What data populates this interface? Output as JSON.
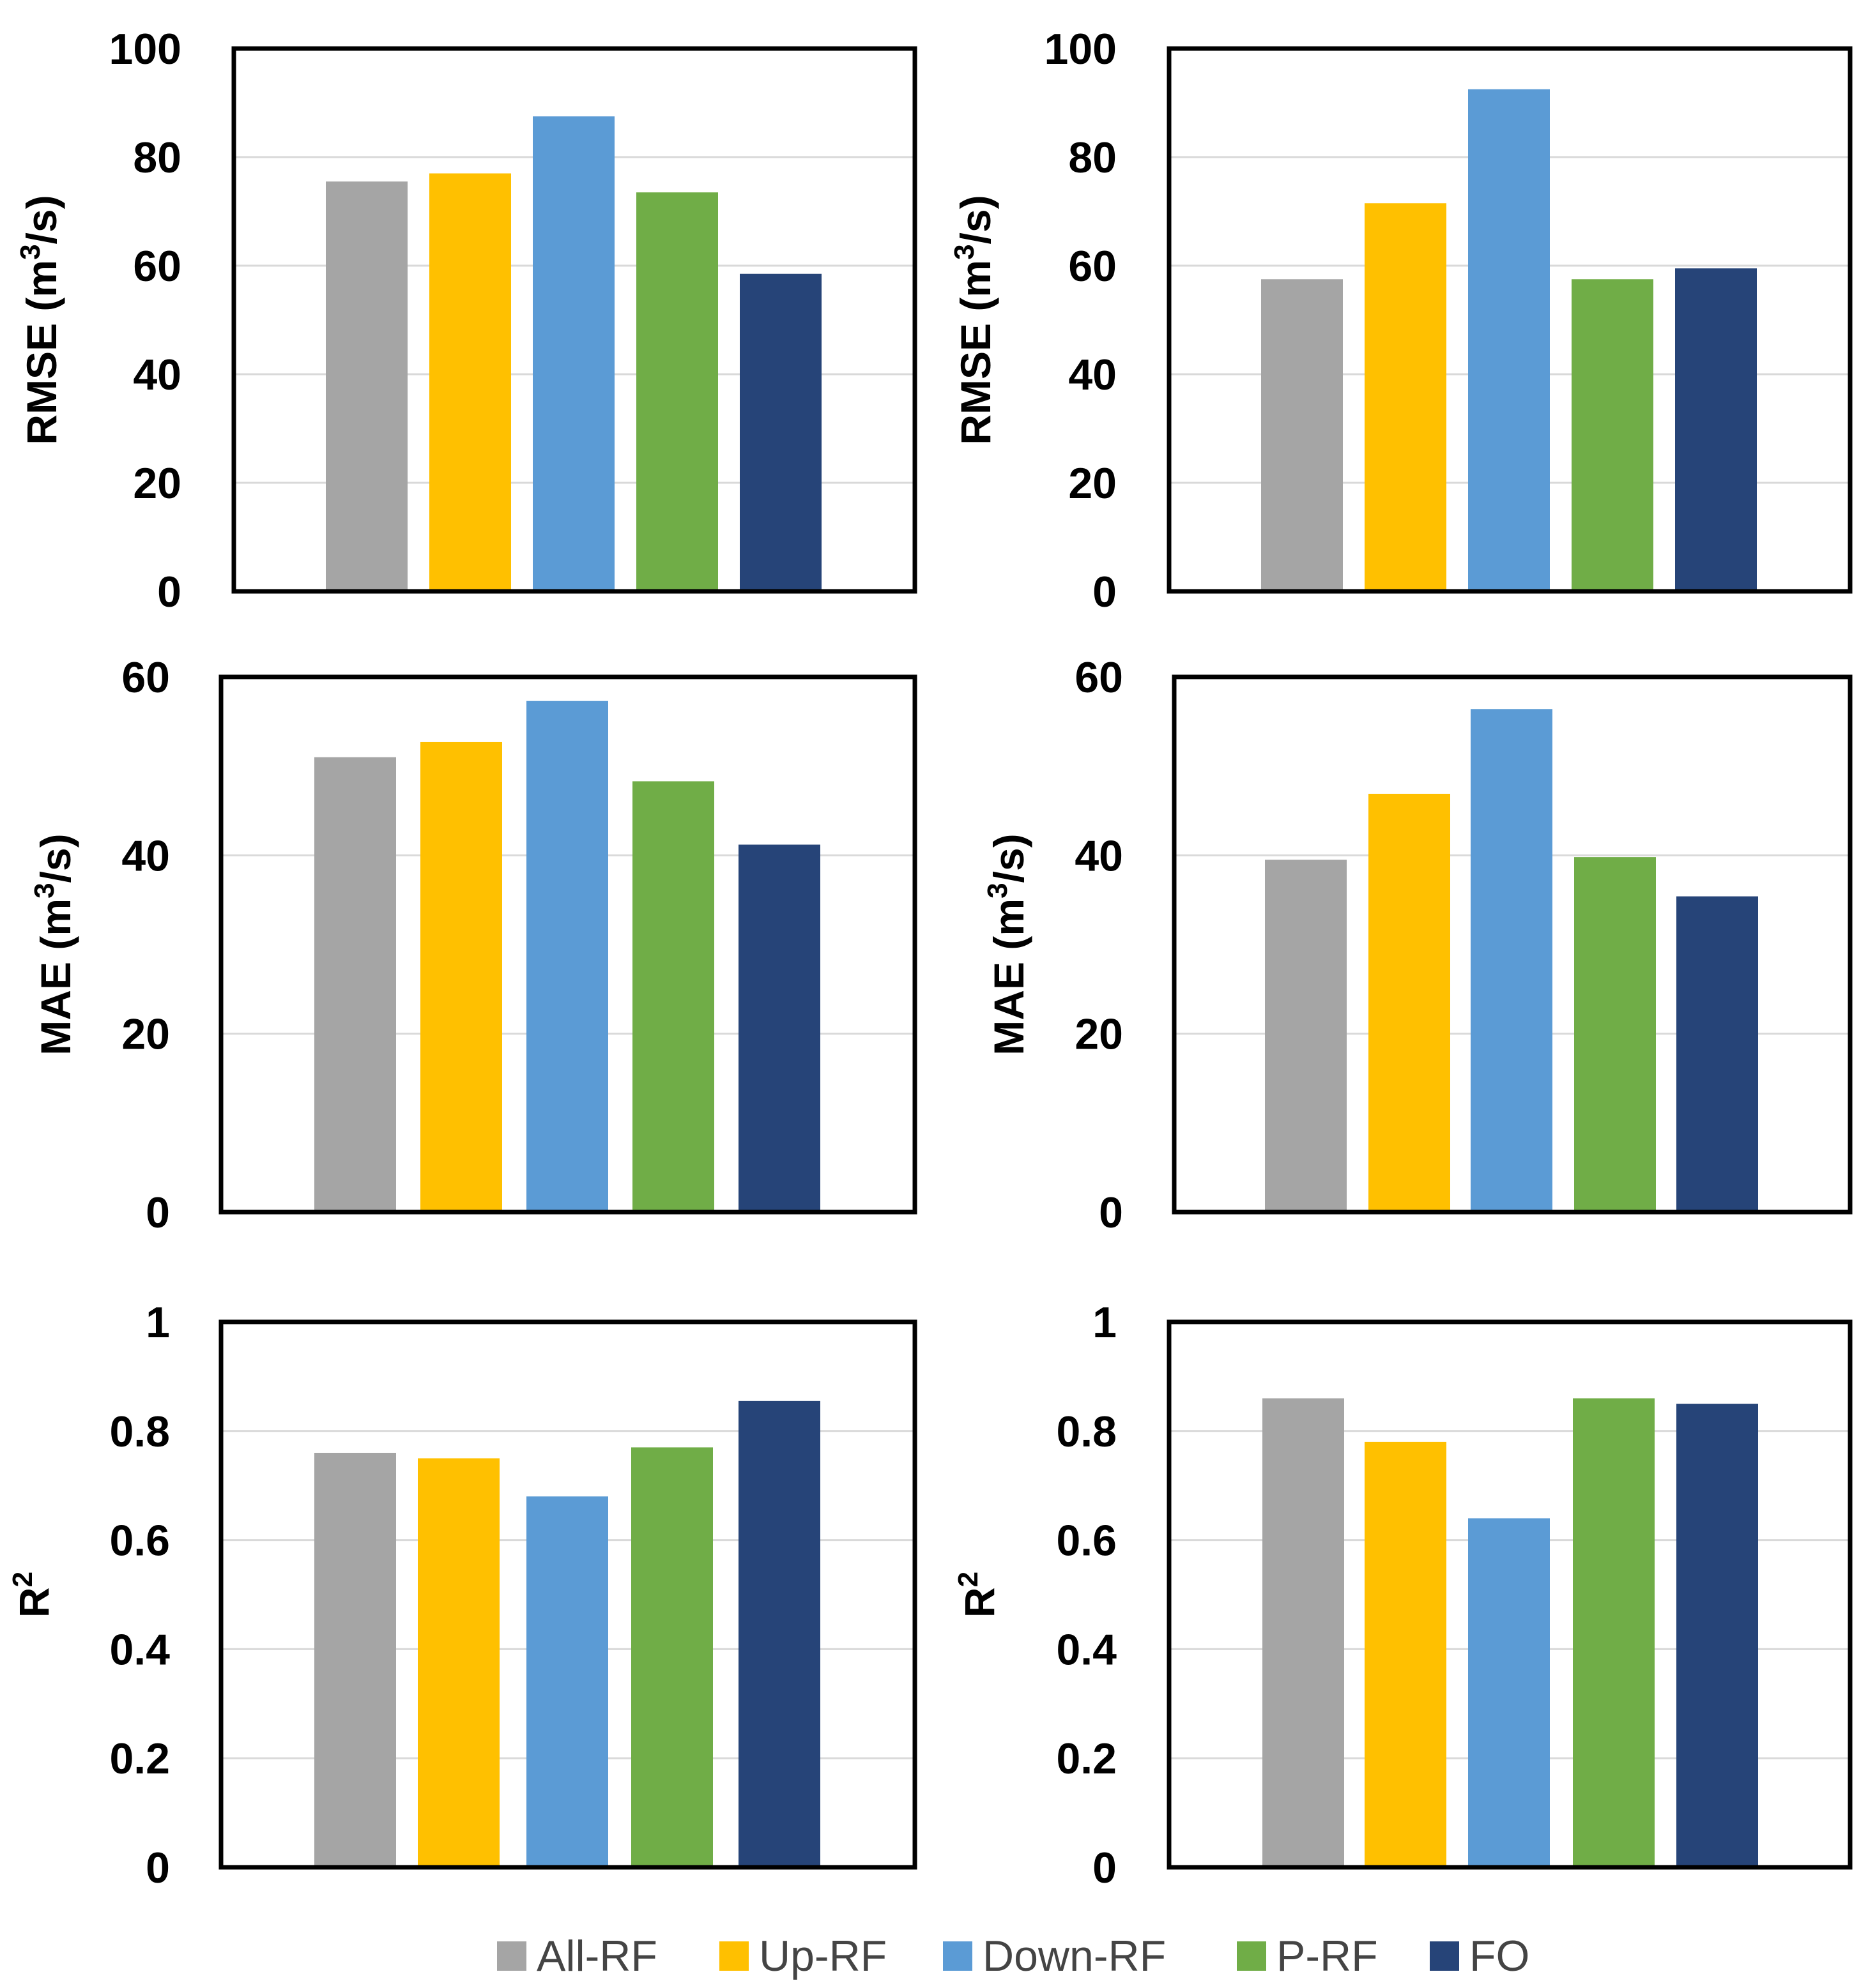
{
  "legend": [
    {
      "label": "All-RF",
      "color": "#A5A5A5"
    },
    {
      "label": "Up-RF",
      "color": "#FFC000"
    },
    {
      "label": "Down-RF",
      "color": "#5B9BD5"
    },
    {
      "label": "P-RF",
      "color": "#70AD47"
    },
    {
      "label": "FO",
      "color": "#264478"
    }
  ],
  "chart_data": [
    {
      "type": "bar",
      "title": "",
      "ylabel": "RMSE (m3/s)",
      "ylabel_main": "RMSE (m",
      "ylabel_sup": "3",
      "ylabel_tail": "/s)",
      "ylim": [
        0,
        100
      ],
      "yticks": [
        0,
        20,
        40,
        60,
        80,
        100
      ],
      "ytick_labels": [
        "0",
        "20",
        "40",
        "60",
        "80",
        "100"
      ],
      "grid": true,
      "series": [
        {
          "name": "All-RF",
          "value": 75.5
        },
        {
          "name": "Up-RF",
          "value": 77
        },
        {
          "name": "Down-RF",
          "value": 87.5
        },
        {
          "name": "P-RF",
          "value": 73.5
        },
        {
          "name": "FO",
          "value": 58.5
        }
      ]
    },
    {
      "type": "bar",
      "title": "",
      "ylabel": "RMSE (m3/s)",
      "ylabel_main": "RMSE (m",
      "ylabel_sup": "3",
      "ylabel_tail": "/s)",
      "ylim": [
        0,
        100
      ],
      "yticks": [
        0,
        20,
        40,
        60,
        80,
        100
      ],
      "ytick_labels": [
        "0",
        "20",
        "40",
        "60",
        "80",
        "100"
      ],
      "grid": true,
      "series": [
        {
          "name": "All-RF",
          "value": 57.5
        },
        {
          "name": "Up-RF",
          "value": 71.5
        },
        {
          "name": "Down-RF",
          "value": 92.5
        },
        {
          "name": "P-RF",
          "value": 57.5
        },
        {
          "name": "FO",
          "value": 59.5
        }
      ]
    },
    {
      "type": "bar",
      "title": "",
      "ylabel": "MAE (m3/s)",
      "ylabel_main": "MAE (m",
      "ylabel_sup": "3",
      "ylabel_tail": "/s)",
      "ylim": [
        0,
        60
      ],
      "yticks": [
        0,
        20,
        40,
        60
      ],
      "ytick_labels": [
        "0",
        "20",
        "40",
        "60"
      ],
      "grid": true,
      "series": [
        {
          "name": "All-RF",
          "value": 51
        },
        {
          "name": "Up-RF",
          "value": 52.7
        },
        {
          "name": "Down-RF",
          "value": 57.3
        },
        {
          "name": "P-RF",
          "value": 48.3
        },
        {
          "name": "FO",
          "value": 41.2
        }
      ]
    },
    {
      "type": "bar",
      "title": "",
      "ylabel": "MAE (m3/s)",
      "ylabel_main": "MAE (m",
      "ylabel_sup": "3",
      "ylabel_tail": "/s)",
      "ylim": [
        0,
        60
      ],
      "yticks": [
        0,
        20,
        40,
        60
      ],
      "ytick_labels": [
        "0",
        "20",
        "40",
        "60"
      ],
      "grid": true,
      "series": [
        {
          "name": "All-RF",
          "value": 39.5
        },
        {
          "name": "Up-RF",
          "value": 46.9
        },
        {
          "name": "Down-RF",
          "value": 56.4
        },
        {
          "name": "P-RF",
          "value": 39.8
        },
        {
          "name": "FO",
          "value": 35.4
        }
      ]
    },
    {
      "type": "bar",
      "title": "",
      "ylabel": "R2",
      "ylabel_main": "R",
      "ylabel_sup": "2",
      "ylabel_tail": "",
      "ylim": [
        0,
        1
      ],
      "yticks": [
        0,
        0.2,
        0.4,
        0.6,
        0.8,
        1
      ],
      "ytick_labels": [
        "0",
        "0.2",
        "0.4",
        "0.6",
        "0.8",
        "1"
      ],
      "grid": true,
      "series": [
        {
          "name": "All-RF",
          "value": 0.76
        },
        {
          "name": "Up-RF",
          "value": 0.75
        },
        {
          "name": "Down-RF",
          "value": 0.68
        },
        {
          "name": "P-RF",
          "value": 0.77
        },
        {
          "name": "FO",
          "value": 0.855
        }
      ]
    },
    {
      "type": "bar",
      "title": "",
      "ylabel": "R2",
      "ylabel_main": "R",
      "ylabel_sup": "2",
      "ylabel_tail": "",
      "ylim": [
        0,
        1
      ],
      "yticks": [
        0,
        0.2,
        0.4,
        0.6,
        0.8,
        1
      ],
      "ytick_labels": [
        "0",
        "0.2",
        "0.4",
        "0.6",
        "0.8",
        "1"
      ],
      "grid": true,
      "series": [
        {
          "name": "All-RF",
          "value": 0.86
        },
        {
          "name": "Up-RF",
          "value": 0.78
        },
        {
          "name": "Down-RF",
          "value": 0.64
        },
        {
          "name": "P-RF",
          "value": 0.86
        },
        {
          "name": "FO",
          "value": 0.85
        }
      ]
    }
  ]
}
